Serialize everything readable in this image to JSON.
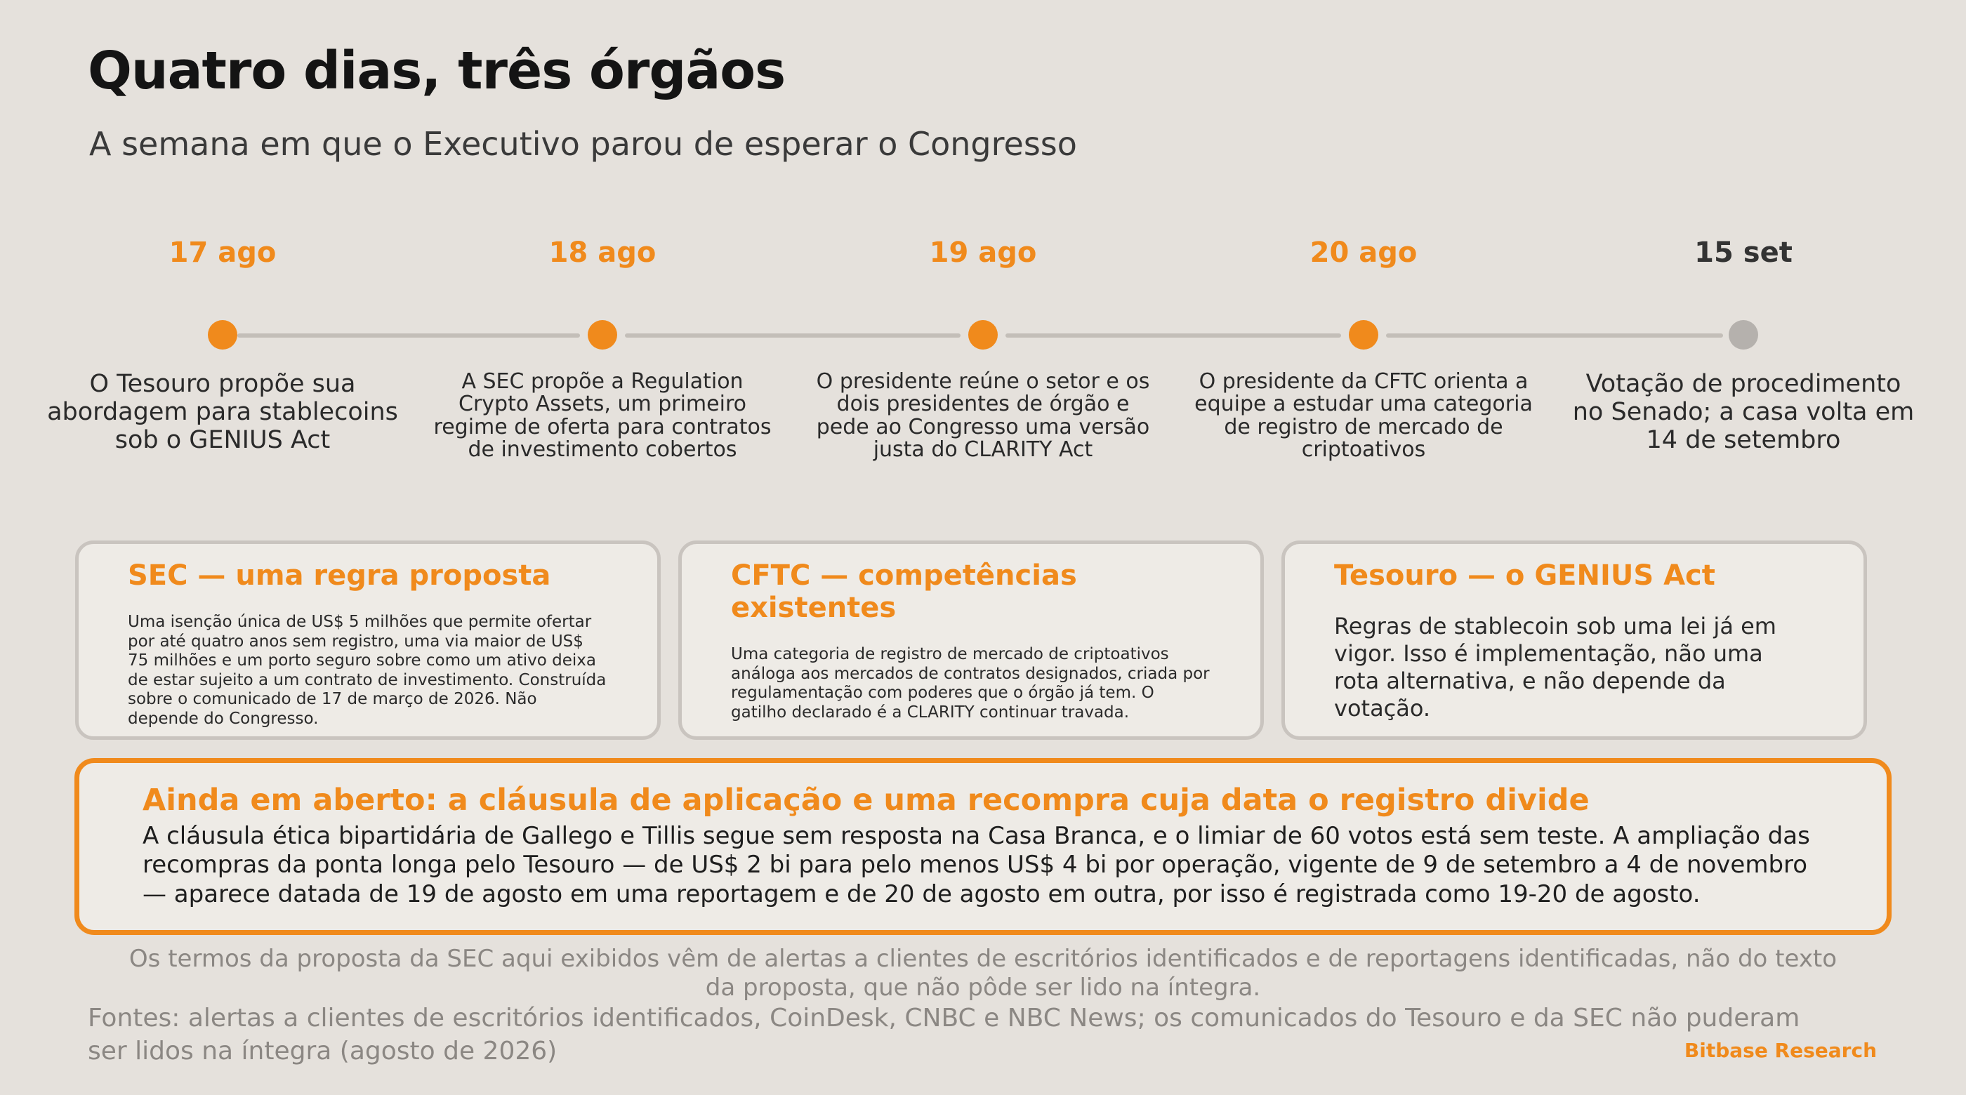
{
  "title": "Quatro dias, três órgãos",
  "subtitle": "A semana em que o Executivo parou de esperar o Congresso",
  "colors": {
    "accent": "#f08a1c",
    "pending": "#b5b1ad",
    "background": "#e5e1dc"
  },
  "timeline": [
    {
      "date": "17 ago",
      "text": "O Tesouro propõe sua abordagem para stablecoins sob o GENIUS Act",
      "status": "done"
    },
    {
      "date": "18 ago",
      "text": "A SEC propõe a Regulation Crypto Assets, um primeiro regime de oferta para contratos de investimento cobertos",
      "status": "done"
    },
    {
      "date": "19 ago",
      "text": "O presidente reúne o setor e os dois presidentes de órgão e pede ao Congresso uma versão justa do CLARITY Act",
      "status": "done"
    },
    {
      "date": "20 ago",
      "text": "O presidente da CFTC orienta a equipe a estudar uma categoria de registro de mercado de criptoativos",
      "status": "done"
    },
    {
      "date": "15 set",
      "text": "Votação de procedimento no Senado; a casa volta em 14 de setembro",
      "status": "pending"
    }
  ],
  "cards": [
    {
      "title": "SEC — uma regra proposta",
      "body": "Uma isenção única de US$ 5 milhões que permite ofertar por até quatro anos sem registro, uma via maior de US$ 75 milhões e um porto seguro sobre como um ativo deixa de estar sujeito a um contrato de investimento. Construída sobre o comunicado de 17 de março de 2026. Não depende do Congresso."
    },
    {
      "title": "CFTC — competências existentes",
      "body": "Uma categoria de registro de mercado de criptoativos análoga aos mercados de contratos designados, criada por regulamentação com poderes que o órgão já tem. O gatilho declarado é a CLARITY continuar travada."
    },
    {
      "title": "Tesouro — o GENIUS Act",
      "body": "Regras de stablecoin sob uma lei já em vigor. Isso é implementação, não uma rota alternativa, e não depende da votação."
    }
  ],
  "callout": {
    "title": "Ainda em aberto: a cláusula de aplicação e uma recompra cuja data o registro divide",
    "body": "A cláusula ética bipartidária de Gallego e Tillis segue sem resposta na Casa Branca, e o limiar de 60 votos está sem teste. A ampliação das recompras da ponta longa pelo Tesouro — de US$ 2 bi para pelo menos US$ 4 bi por operação, vigente de 9 de setembro a 4 de novembro — aparece datada de 19 de agosto em uma reportagem e de 20 de agosto em outra, por isso é registrada como 19-20 de agosto."
  },
  "note": "Os termos da proposta da SEC aqui exibidos vêm de alertas a clientes de escritórios identificados e de reportagens identificadas, não do texto da proposta, que não pôde ser lido na íntegra.",
  "sources": "Fontes: alertas a clientes de escritórios identificados, CoinDesk, CNBC e NBC News; os comunicados do Tesouro e da SEC não puderam ser lidos na íntegra (agosto de 2026)",
  "brand": "Bitbase Research"
}
